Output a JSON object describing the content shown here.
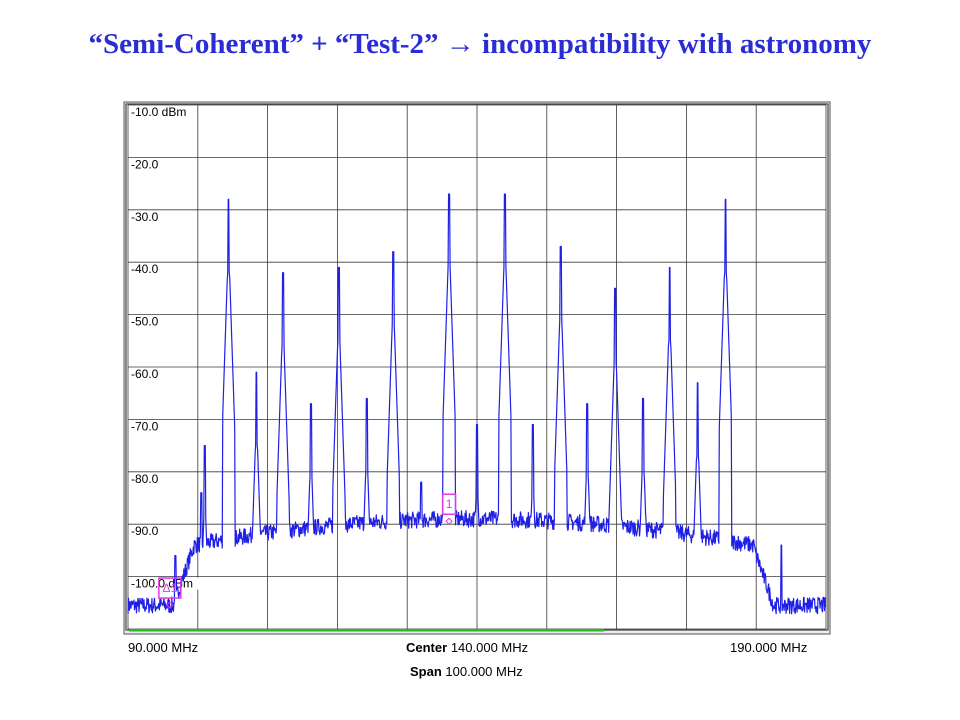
{
  "slide": {
    "title_part1": "“Semi-Coherent” + “Test-2”",
    "title_arrow": "→",
    "title_part2": "incompatibility with astronomy"
  },
  "colors": {
    "title": "#2a2cd6",
    "trace": "#1f1fe6",
    "marker": "#e23ae2",
    "grid": "#3a3a3a",
    "sweep_bar": "#1fbf1f",
    "screen": "#ffffff"
  },
  "chart_data": {
    "type": "line",
    "instrument": "spectrum analyzer",
    "y_unit": "dBm",
    "xlim": [
      90,
      190
    ],
    "ylim": [
      -110,
      -10
    ],
    "y_tick_labels": [
      "-10.0 dBm",
      "-20.0",
      "-30.0",
      "-40.0",
      "-50.0",
      "-60.0",
      "-70.0",
      "-80.0",
      "-90.0",
      "-100.0 dBm"
    ],
    "footer": {
      "start_label": "90.000 MHz",
      "stop_label": "190.000 MHz",
      "center_key": "Center",
      "center_value": "140.000 MHz",
      "span_key": "Span",
      "span_value": "100.000 MHz"
    },
    "noise_floor": {
      "out_of_band_dbm": -105.5,
      "in_band_edges_mhz": [
        99.5,
        179.5
      ],
      "in_band_dbm_at_edges": -94,
      "in_band_dbm_at_center": -89
    },
    "peaks": [
      {
        "f": 96.8,
        "dbm": -96
      },
      {
        "f": 100.5,
        "dbm": -84
      },
      {
        "f": 101.0,
        "dbm": -75
      },
      {
        "f": 104.4,
        "dbm": -28
      },
      {
        "f": 108.4,
        "dbm": -61
      },
      {
        "f": 112.2,
        "dbm": -42
      },
      {
        "f": 116.2,
        "dbm": -67
      },
      {
        "f": 120.2,
        "dbm": -41
      },
      {
        "f": 124.2,
        "dbm": -66
      },
      {
        "f": 128.0,
        "dbm": -38
      },
      {
        "f": 132.0,
        "dbm": -82
      },
      {
        "f": 136.0,
        "dbm": -27
      },
      {
        "f": 140.0,
        "dbm": -71
      },
      {
        "f": 144.0,
        "dbm": -27
      },
      {
        "f": 148.0,
        "dbm": -71
      },
      {
        "f": 152.0,
        "dbm": -37
      },
      {
        "f": 155.8,
        "dbm": -67
      },
      {
        "f": 159.8,
        "dbm": -45
      },
      {
        "f": 163.8,
        "dbm": -66
      },
      {
        "f": 167.6,
        "dbm": -41
      },
      {
        "f": 171.6,
        "dbm": -63
      },
      {
        "f": 175.6,
        "dbm": -28
      },
      {
        "f": 179.6,
        "dbm": -93
      },
      {
        "f": 183.6,
        "dbm": -94
      }
    ],
    "markers": [
      {
        "label": "1",
        "f": 136.0,
        "dbm": -86
      },
      {
        "label": "Δ1",
        "f": 96.0,
        "dbm": -102
      }
    ],
    "grid": true
  }
}
